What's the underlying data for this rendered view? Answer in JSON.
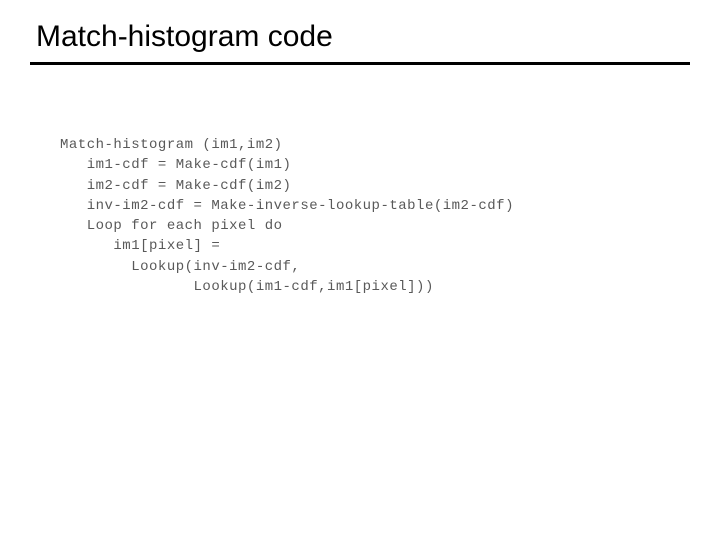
{
  "slide": {
    "title": "Match-histogram code",
    "title_fontsize": 30,
    "title_color": "#000000",
    "divider_color": "#000000",
    "divider_thickness": 3,
    "background_color": "#ffffff",
    "code": {
      "font_family": "Courier New",
      "font_size": 14,
      "color": "#595959",
      "lines": [
        "Match-histogram (im1,im2)",
        "   im1-cdf = Make-cdf(im1)",
        "   im2-cdf = Make-cdf(im2)",
        "   inv-im2-cdf = Make-inverse-lookup-table(im2-cdf)",
        "   Loop for each pixel do",
        "      im1[pixel] =",
        "        Lookup(inv-im2-cdf,",
        "               Lookup(im1-cdf,im1[pixel]))"
      ]
    }
  }
}
